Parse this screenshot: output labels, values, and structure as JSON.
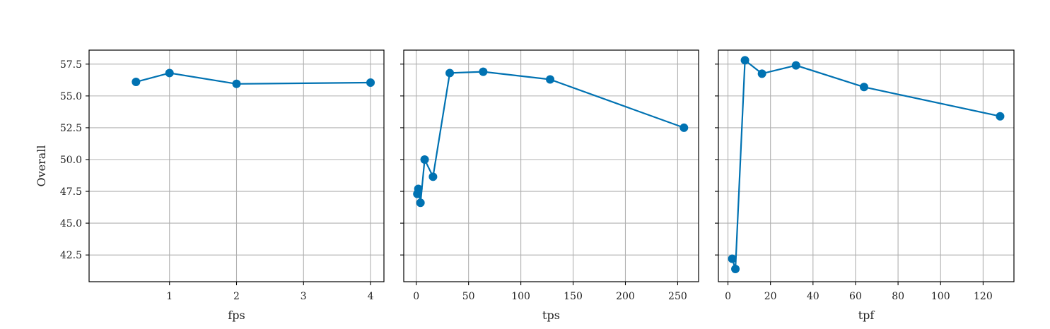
{
  "colors": {
    "series": "#0072b2",
    "grid": "#b0b0b0"
  },
  "chart_data": [
    {
      "type": "line",
      "xlabel": "fps",
      "ylabel": "Overall",
      "x": [
        0.5,
        1,
        2,
        4
      ],
      "series": [
        {
          "values": [
            56.1,
            56.8,
            55.95,
            56.05
          ]
        }
      ],
      "xlim": [
        -0.2,
        4.2
      ],
      "ylim": [
        40.4,
        58.6
      ],
      "xticks": [
        1,
        2,
        3,
        4
      ],
      "xtick_labels": [
        "1",
        "2",
        "3",
        "4"
      ],
      "yticks": [
        42.5,
        45.0,
        47.5,
        50.0,
        52.5,
        55.0,
        57.5
      ],
      "ytick_labels": [
        "42.5",
        "45.0",
        "47.5",
        "50.0",
        "52.5",
        "55.0",
        "57.5"
      ],
      "grid": true
    },
    {
      "type": "line",
      "xlabel": "tps",
      "ylabel": "",
      "x": [
        1,
        2,
        4,
        8,
        16,
        32,
        64,
        128,
        256
      ],
      "series": [
        {
          "values": [
            47.3,
            47.7,
            46.6,
            50.0,
            48.65,
            56.8,
            56.9,
            56.3,
            52.5
          ]
        }
      ],
      "xlim": [
        -12,
        270
      ],
      "ylim": [
        40.4,
        58.6
      ],
      "xticks": [
        0,
        50,
        100,
        150,
        200,
        250
      ],
      "xtick_labels": [
        "0",
        "50",
        "100",
        "150",
        "200",
        "250"
      ],
      "yticks": [
        42.5,
        45.0,
        47.5,
        50.0,
        52.5,
        55.0,
        57.5
      ],
      "ytick_labels": [],
      "grid": true
    },
    {
      "type": "line",
      "xlabel": "tpf",
      "ylabel": "",
      "x": [
        2,
        3.5,
        8,
        16,
        32,
        64,
        128
      ],
      "series": [
        {
          "values": [
            42.2,
            41.4,
            57.8,
            56.75,
            57.4,
            55.7,
            53.4
          ]
        }
      ],
      "xlim": [
        -4.5,
        134.5
      ],
      "ylim": [
        40.4,
        58.6
      ],
      "xticks": [
        0,
        20,
        40,
        60,
        80,
        100,
        120
      ],
      "xtick_labels": [
        "0",
        "20",
        "40",
        "60",
        "80",
        "100",
        "120"
      ],
      "yticks": [
        42.5,
        45.0,
        47.5,
        50.0,
        52.5,
        55.0,
        57.5
      ],
      "ytick_labels": [],
      "grid": true
    }
  ]
}
